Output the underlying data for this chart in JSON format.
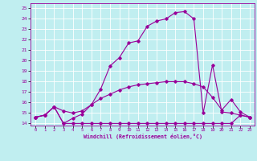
{
  "xlabel": "Windchill (Refroidissement éolien,°C)",
  "bg_color": "#c0eef0",
  "line_color": "#990099",
  "xlim": [
    -0.5,
    23.5
  ],
  "ylim": [
    13.8,
    25.5
  ],
  "xticks": [
    0,
    1,
    2,
    3,
    4,
    5,
    6,
    7,
    8,
    9,
    10,
    11,
    12,
    13,
    14,
    15,
    16,
    17,
    18,
    19,
    20,
    21,
    22,
    23
  ],
  "yticks": [
    14,
    15,
    16,
    17,
    18,
    19,
    20,
    21,
    22,
    23,
    24,
    25
  ],
  "curve1_x": [
    0,
    1,
    2,
    3,
    4,
    5,
    6,
    7,
    8,
    9,
    10,
    11,
    12,
    13,
    14,
    15,
    16,
    17,
    18,
    19,
    20,
    21,
    22,
    23
  ],
  "curve1_y": [
    14.6,
    14.8,
    15.6,
    15.2,
    15.0,
    15.2,
    15.8,
    17.3,
    19.5,
    20.3,
    21.7,
    21.9,
    23.3,
    23.8,
    24.0,
    24.6,
    24.7,
    24.0,
    15.0,
    19.6,
    15.1,
    15.0,
    14.8,
    14.6
  ],
  "curve2_x": [
    0,
    1,
    2,
    3,
    4,
    5,
    6,
    7,
    8,
    9,
    10,
    11,
    12,
    13,
    14,
    15,
    16,
    17,
    18,
    19,
    20,
    21,
    22,
    23
  ],
  "curve2_y": [
    14.6,
    14.8,
    15.6,
    14.0,
    14.5,
    14.9,
    15.8,
    16.4,
    16.8,
    17.2,
    17.5,
    17.7,
    17.8,
    17.9,
    18.0,
    18.0,
    18.0,
    17.8,
    17.5,
    16.5,
    15.3,
    16.3,
    15.1,
    14.6
  ],
  "curve3_x": [
    0,
    1,
    2,
    3,
    4,
    5,
    6,
    7,
    8,
    9,
    10,
    11,
    12,
    13,
    14,
    15,
    16,
    17,
    18,
    19,
    20,
    21,
    22,
    23
  ],
  "curve3_y": [
    14.6,
    14.8,
    15.6,
    14.0,
    14.0,
    14.0,
    14.0,
    14.0,
    14.0,
    14.0,
    14.0,
    14.0,
    14.0,
    14.0,
    14.0,
    14.0,
    14.0,
    14.0,
    14.0,
    14.0,
    14.0,
    14.0,
    14.8,
    14.6
  ]
}
